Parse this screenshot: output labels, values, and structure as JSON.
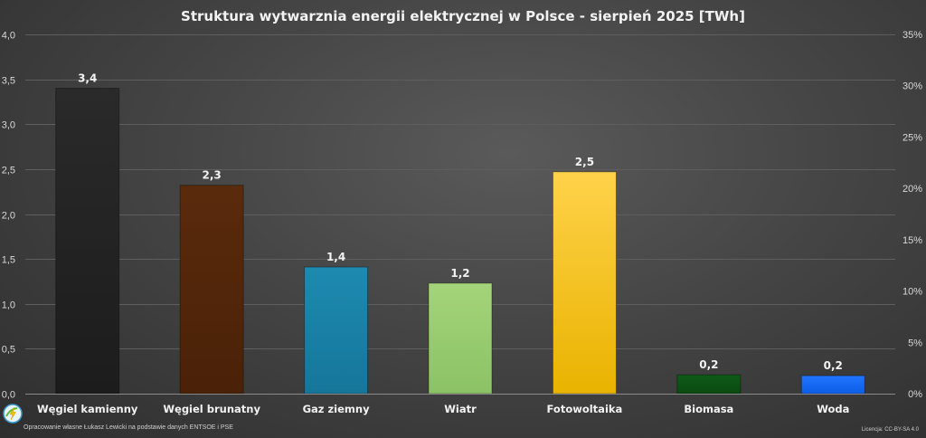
{
  "chart_data": {
    "type": "bar",
    "title": "Struktura wytwarznia energii elektrycznej w Polsce - sierpień 2025 [TWh]",
    "categories": [
      "Węgiel kamienny",
      "Węgiel brunatny",
      "Gaz ziemny",
      "Wiatr",
      "Fotowoltaika",
      "Biomasa",
      "Woda"
    ],
    "values": [
      3.4,
      2.32,
      1.41,
      1.23,
      2.47,
      0.21,
      0.2
    ],
    "data_labels": [
      "3,4",
      "2,3",
      "1,4",
      "1,2",
      "2,5",
      "0,2",
      "0,2"
    ],
    "bar_colors": [
      [
        "#2a2a2a",
        "#1c1c1c"
      ],
      [
        "#5a2a0c",
        "#4a2208"
      ],
      [
        "#1e8ab0",
        "#15769a"
      ],
      [
        "#a4d47a",
        "#8cc266"
      ],
      [
        "#ffd24a",
        "#e9b300"
      ],
      [
        "#0f5a18",
        "#0b4a12"
      ],
      [
        "#1f74ff",
        "#0d5ee6"
      ]
    ],
    "ylim": [
      0,
      4
    ],
    "y_ticks": [
      "0,0",
      "0,5",
      "1,0",
      "1,5",
      "2,0",
      "2,5",
      "3,0",
      "3,5",
      "4,0"
    ],
    "y2_ticks": [
      "0%",
      "5%",
      "10%",
      "15%",
      "20%",
      "25%",
      "30%",
      "35%"
    ],
    "grid": true,
    "legend": "none"
  },
  "footer": {
    "credit": "Opracowanie własne Łukasz Lewicki na podstawie danych ENTSOE i PSE",
    "license": "Licencja: CC-BY-SA 4.0",
    "logo_icon": "lightning-bolt-icon"
  }
}
